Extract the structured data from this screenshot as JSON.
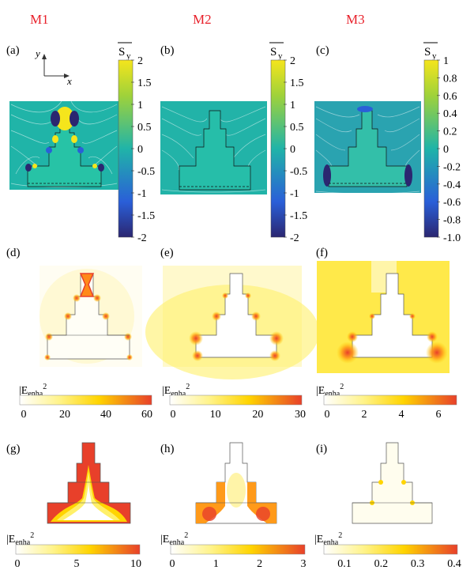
{
  "columns": [
    "M1",
    "M2",
    "M3"
  ],
  "colors": {
    "column_header": "#e8202a",
    "field_hot": "#e8402a",
    "field_mid": "#ffd400",
    "field_cool": "#ffffff",
    "sy_low": "#2b2670",
    "sy_mid": "#20b4a8",
    "sy_high": "#f5e51c"
  },
  "panels": {
    "a": "(a)",
    "b": "(b)",
    "c": "(c)",
    "d": "(d)",
    "e": "(e)",
    "f": "(f)",
    "g": "(g)",
    "h": "(h)",
    "i": "(i)"
  },
  "axes": {
    "y": "y",
    "x": "x"
  },
  "sy": {
    "symbol": "S",
    "subscript": "y",
    "m1_ticks": [
      "2",
      "1.5",
      "1",
      "0.5",
      "0",
      "-0.5",
      "-1",
      "-1.5",
      "-2"
    ],
    "m2_ticks": [
      "2",
      "1.5",
      "1",
      "0.5",
      "0",
      "-0.5",
      "-1",
      "-1.5",
      "-2"
    ],
    "m3_ticks": [
      "1",
      "0.8",
      "0.6",
      "0.4",
      "0.2",
      "0",
      "-0.2",
      "-0.4",
      "-0.6",
      "-0.8",
      "-1.0"
    ]
  },
  "enh": {
    "label_main": "|E",
    "label_sub": "enha",
    "label_sup": "2",
    "row2": {
      "m1": [
        "0",
        "20",
        "40",
        "60"
      ],
      "m2": [
        "0",
        "10",
        "20",
        "30"
      ],
      "m3": [
        "0",
        "2",
        "4",
        "6"
      ]
    },
    "row3": {
      "m1": [
        "0",
        "5",
        "10"
      ],
      "m2": [
        "0",
        "1",
        "2",
        "3"
      ],
      "m3": [
        "0.1",
        "0.2",
        "0.3",
        "0.4"
      ]
    }
  }
}
